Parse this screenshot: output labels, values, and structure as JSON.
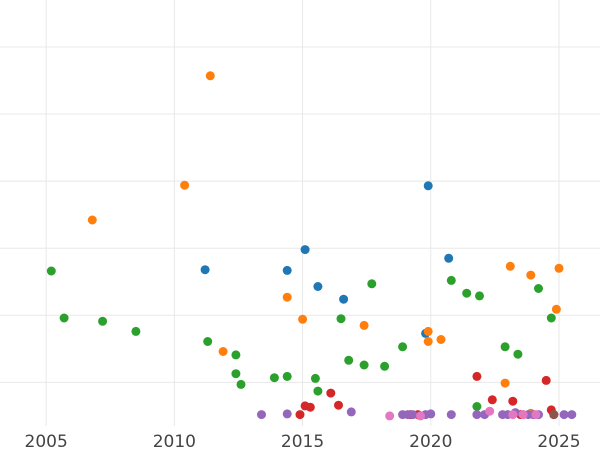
{
  "chart_data": {
    "type": "scatter",
    "title": "",
    "xlabel": "",
    "ylabel": "",
    "xlim": [
      2003.2,
      2026.6
    ],
    "ylim": [
      -0.15,
      6.2
    ],
    "grid": true,
    "x_ticks": [
      2005,
      2010,
      2015,
      2020,
      2025
    ],
    "x_tick_labels": [
      "2005",
      "2010",
      "2015",
      "2020",
      "2025"
    ],
    "y_gridlines": [
      0.5,
      1.5,
      2.5,
      3.5,
      4.5,
      5.5
    ],
    "series": [
      {
        "color": "#1f77b4",
        "points": [
          [
            2011.2,
            2.18
          ],
          [
            2014.4,
            2.17
          ],
          [
            2015.1,
            2.48
          ],
          [
            2015.6,
            1.93
          ],
          [
            2016.6,
            1.74
          ],
          [
            2019.8,
            1.23
          ],
          [
            2019.9,
            3.43
          ],
          [
            2020.7,
            2.35
          ]
        ]
      },
      {
        "color": "#ff7f0e",
        "points": [
          [
            2006.8,
            2.92
          ],
          [
            2010.4,
            3.44
          ],
          [
            2011.4,
            5.07
          ],
          [
            2011.9,
            0.96
          ],
          [
            2014.4,
            1.77
          ],
          [
            2015.0,
            1.44
          ],
          [
            2017.4,
            1.35
          ],
          [
            2019.9,
            1.26
          ],
          [
            2019.9,
            1.11
          ],
          [
            2020.4,
            1.14
          ],
          [
            2022.9,
            0.49
          ],
          [
            2023.1,
            2.23
          ],
          [
            2023.9,
            2.1
          ],
          [
            2024.9,
            1.59
          ],
          [
            2025.0,
            2.2
          ],
          [
            2023.9,
            0.04
          ]
        ]
      },
      {
        "color": "#2ca02c",
        "points": [
          [
            2005.2,
            2.16
          ],
          [
            2005.7,
            1.46
          ],
          [
            2007.2,
            1.41
          ],
          [
            2008.5,
            1.26
          ],
          [
            2011.3,
            1.11
          ],
          [
            2012.4,
            0.91
          ],
          [
            2012.4,
            0.63
          ],
          [
            2012.6,
            0.47
          ],
          [
            2013.9,
            0.57
          ],
          [
            2014.4,
            0.59
          ],
          [
            2015.5,
            0.56
          ],
          [
            2015.6,
            0.37
          ],
          [
            2016.5,
            1.45
          ],
          [
            2016.8,
            0.83
          ],
          [
            2017.4,
            0.76
          ],
          [
            2017.7,
            1.97
          ],
          [
            2018.2,
            0.74
          ],
          [
            2018.9,
            1.03
          ],
          [
            2020.8,
            2.02
          ],
          [
            2021.4,
            1.83
          ],
          [
            2021.8,
            0.14
          ],
          [
            2021.9,
            1.79
          ],
          [
            2022.9,
            1.03
          ],
          [
            2023.4,
            0.92
          ],
          [
            2024.2,
            1.9
          ],
          [
            2024.7,
            1.46
          ]
        ]
      },
      {
        "color": "#d62728",
        "points": [
          [
            2014.9,
            0.02
          ],
          [
            2015.1,
            0.15
          ],
          [
            2015.3,
            0.13
          ],
          [
            2016.1,
            0.34
          ],
          [
            2016.4,
            0.16
          ],
          [
            2019.2,
            0.02
          ],
          [
            2019.5,
            0.02
          ],
          [
            2021.8,
            0.59
          ],
          [
            2022.4,
            0.24
          ],
          [
            2023.2,
            0.22
          ],
          [
            2023.5,
            0.02
          ],
          [
            2023.6,
            0.02
          ],
          [
            2024.5,
            0.53
          ],
          [
            2024.7,
            0.09
          ],
          [
            2024.8,
            0.02
          ]
        ]
      },
      {
        "color": "#9467bd",
        "points": [
          [
            2013.4,
            0.02
          ],
          [
            2014.4,
            0.03
          ],
          [
            2016.9,
            0.06
          ],
          [
            2018.9,
            0.02
          ],
          [
            2019.1,
            0.02
          ],
          [
            2019.3,
            0.02
          ],
          [
            2019.8,
            0.02
          ],
          [
            2020.0,
            0.03
          ],
          [
            2020.8,
            0.02
          ],
          [
            2021.8,
            0.02
          ],
          [
            2022.1,
            0.02
          ],
          [
            2022.8,
            0.02
          ],
          [
            2023.0,
            0.02
          ],
          [
            2023.3,
            0.05
          ],
          [
            2023.8,
            0.02
          ],
          [
            2024.0,
            0.02
          ],
          [
            2024.2,
            0.02
          ],
          [
            2025.2,
            0.02
          ],
          [
            2025.5,
            0.02
          ]
        ]
      },
      {
        "color": "#e377c2",
        "points": [
          [
            2018.4,
            0.0
          ],
          [
            2019.6,
            0.0
          ],
          [
            2022.3,
            0.07
          ],
          [
            2023.2,
            0.02
          ],
          [
            2023.6,
            0.02
          ],
          [
            2024.1,
            0.02
          ]
        ]
      },
      {
        "color": "#8c564b",
        "points": [
          [
            2024.8,
            0.02
          ]
        ]
      }
    ]
  }
}
